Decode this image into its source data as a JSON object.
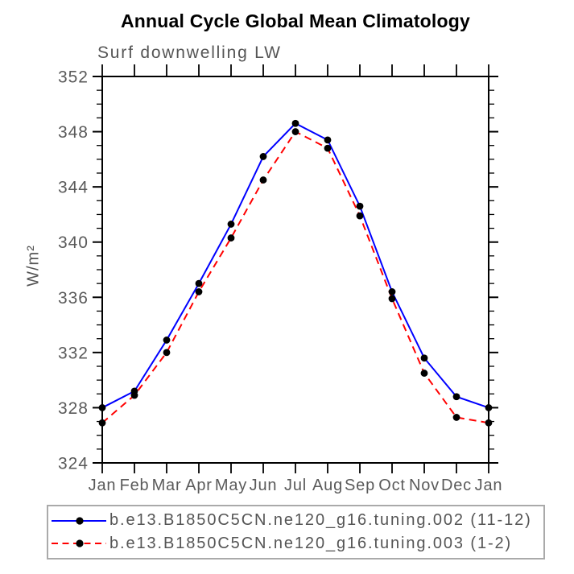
{
  "chart_data": {
    "type": "line",
    "title": "Annual Cycle Global Mean Climatology",
    "subtitle": "Surf downwelling LW",
    "ylabel": "W/m²",
    "ylim": [
      324,
      352
    ],
    "ytick_major_step": 4,
    "ytick_minor_step": 1,
    "grid": false,
    "legend_position": "bottom",
    "categories": [
      "Jan",
      "Feb",
      "Mar",
      "Apr",
      "May",
      "Jun",
      "Jul",
      "Aug",
      "Sep",
      "Oct",
      "Nov",
      "Dec",
      "Jan"
    ],
    "series": [
      {
        "name": "b.e13.B1850C5CN.ne120_g16.tuning.002 (11-12)",
        "line_color": "#0000ff",
        "line_style": "solid",
        "marker": "filled-circle",
        "marker_color": "#000000",
        "values": [
          328.0,
          329.2,
          332.9,
          337.0,
          341.3,
          346.2,
          348.6,
          347.4,
          342.6,
          336.4,
          331.6,
          328.8,
          328.0
        ]
      },
      {
        "name": "b.e13.B1850C5CN.ne120_g16.tuning.003 (1-2)",
        "line_color": "#ff0000",
        "line_style": "dashed",
        "marker": "filled-circle",
        "marker_color": "#000000",
        "values": [
          326.9,
          328.9,
          332.0,
          336.4,
          340.3,
          344.5,
          348.0,
          346.8,
          341.9,
          335.9,
          330.5,
          327.3,
          326.9
        ]
      }
    ]
  },
  "colors": {
    "background": "#ffffff",
    "axis": "#000000",
    "tick_labels": "#5a5a5a",
    "legend_border": "#aaaaaa",
    "title": "#000000"
  }
}
